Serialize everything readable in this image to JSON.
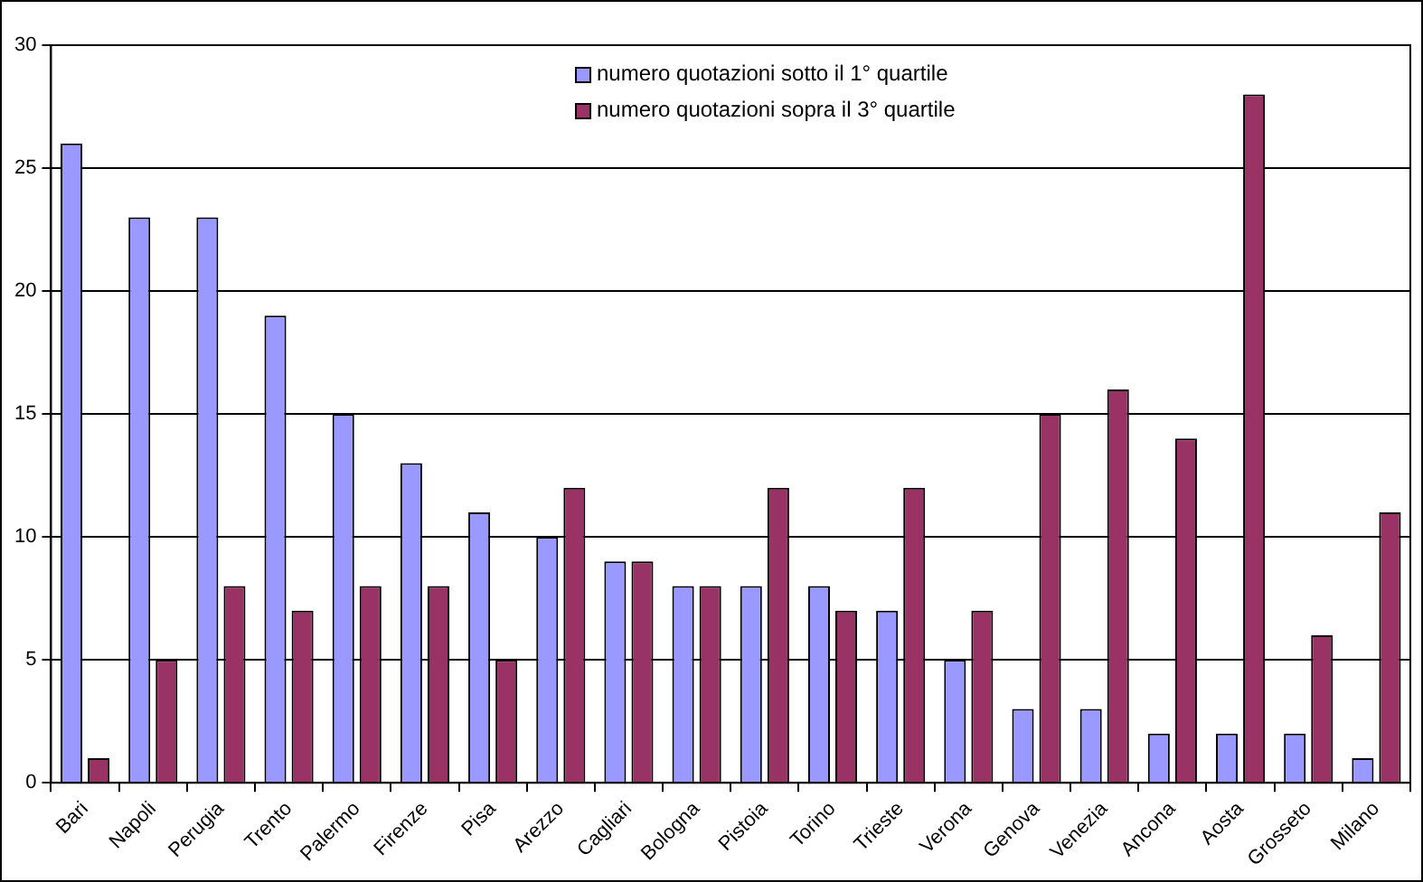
{
  "chart_data": {
    "type": "bar",
    "categories": [
      "Bari",
      "Napoli",
      "Perugia",
      "Trento",
      "Palermo",
      "Firenze",
      "Pisa",
      "Arezzo",
      "Cagliari",
      "Bologna",
      "Pistoia",
      "Torino",
      "Trieste",
      "Verona",
      "Genova",
      "Venezia",
      "Ancona",
      "Aosta",
      "Grosseto",
      "Milano"
    ],
    "series": [
      {
        "name": "numero quotazioni sotto il 1° quartile",
        "color": "#9999ff",
        "values": [
          26,
          23,
          23,
          19,
          15,
          13,
          11,
          10,
          9,
          8,
          8,
          8,
          7,
          5,
          3,
          3,
          2,
          2,
          2,
          1
        ]
      },
      {
        "name": "numero quotazioni sopra il 3° quartile",
        "color": "#993366",
        "values": [
          1,
          5,
          8,
          7,
          8,
          8,
          5,
          12,
          9,
          8,
          12,
          7,
          12,
          7,
          15,
          16,
          14,
          28,
          6,
          11
        ]
      }
    ],
    "ylim": [
      0,
      30
    ],
    "yticks": [
      0,
      5,
      10,
      15,
      20,
      25,
      30
    ],
    "grid": "y",
    "legend": "top"
  }
}
